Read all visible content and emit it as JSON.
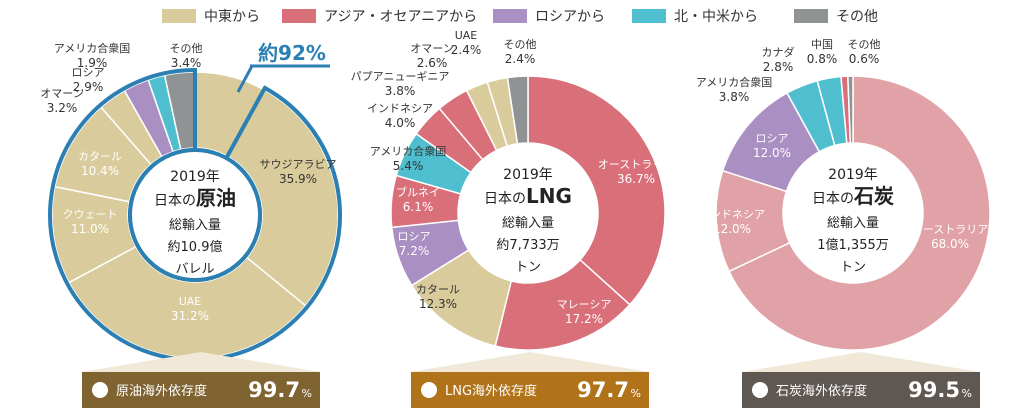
{
  "legend": [
    {
      "label": "中東から",
      "color": "#d9cb9b"
    },
    {
      "label": "アジア・オセアニアから",
      "color": "#d96f79"
    },
    {
      "label": "ロシアから",
      "color": "#a98fc2"
    },
    {
      "label": "北・中米から",
      "color": "#4fbfcf"
    },
    {
      "label": "その他",
      "color": "#8f9394"
    }
  ],
  "chart_data": [
    {
      "type": "pie",
      "title": "原油",
      "center": {
        "year": "2019年",
        "line1_prefix": "日本の",
        "line1_big": "原油",
        "line2": "総輸入量",
        "line3": "約10.9億",
        "line4": "バレル"
      },
      "highlight": {
        "label": "約92%",
        "value": 92,
        "color": "#2b7fb3"
      },
      "slices": [
        {
          "label": "サウジアラビア",
          "value": 35.9,
          "display": "35.9%",
          "group": "middle_east"
        },
        {
          "label": "UAE",
          "value": 31.2,
          "display": "31.2%",
          "group": "middle_east"
        },
        {
          "label": "クウェート",
          "value": 11.0,
          "display": "11.0%",
          "group": "middle_east"
        },
        {
          "label": "カタール",
          "value": 10.4,
          "display": "10.4%",
          "group": "middle_east"
        },
        {
          "label": "オマーン",
          "value": 3.2,
          "display": "3.2%",
          "group": "middle_east"
        },
        {
          "label": "ロシア",
          "value": 2.9,
          "display": "2.9%",
          "group": "russia"
        },
        {
          "label": "アメリカ合衆国",
          "value": 1.9,
          "display": "1.9%",
          "group": "north_america"
        },
        {
          "label": "その他",
          "value": 3.4,
          "display": "3.4%",
          "group": "other"
        }
      ],
      "dependence": {
        "label": "原油海外依存度",
        "value": "99.7",
        "unit": "%",
        "color": "#7f6431"
      }
    },
    {
      "type": "pie",
      "title": "LNG",
      "center": {
        "year": "2019年",
        "line1_prefix": "日本の",
        "line1_big": "LNG",
        "line2": "総輸入量",
        "line3": "約7,733万",
        "line4": "トン"
      },
      "slices": [
        {
          "label": "オーストラリア",
          "value": 36.7,
          "display": "36.7%",
          "group": "asia"
        },
        {
          "label": "マレーシア",
          "value": 17.2,
          "display": "17.2%",
          "group": "asia"
        },
        {
          "label": "カタール",
          "value": 12.3,
          "display": "12.3%",
          "group": "middle_east"
        },
        {
          "label": "ロシア",
          "value": 7.2,
          "display": "7.2%",
          "group": "russia"
        },
        {
          "label": "ブルネイ",
          "value": 6.1,
          "display": "6.1%",
          "group": "asia"
        },
        {
          "label": "アメリカ合衆国",
          "value": 5.4,
          "display": "5.4%",
          "group": "north_america"
        },
        {
          "label": "インドネシア",
          "value": 4.0,
          "display": "4.0%",
          "group": "asia"
        },
        {
          "label": "パプアニューギニア",
          "value": 3.8,
          "display": "3.8%",
          "group": "asia"
        },
        {
          "label": "オマーン",
          "value": 2.6,
          "display": "2.6%",
          "group": "middle_east"
        },
        {
          "label": "UAE",
          "value": 2.4,
          "display": "2.4%",
          "group": "middle_east"
        },
        {
          "label": "その他",
          "value": 2.4,
          "display": "2.4%",
          "group": "other"
        }
      ],
      "dependence": {
        "label": "LNG海外依存度",
        "value": "97.7",
        "unit": "%",
        "color": "#b17319"
      }
    },
    {
      "type": "pie",
      "title": "石炭",
      "center": {
        "year": "2019年",
        "line1_prefix": "日本の",
        "line1_big": "石炭",
        "line2": "総輸入量",
        "line3": "1億1,355万",
        "line4": "トン"
      },
      "slices": [
        {
          "label": "オーストラリア",
          "value": 68.0,
          "display": "68.0%",
          "group": "asia_light"
        },
        {
          "label": "インドネシア",
          "value": 12.0,
          "display": "12.0%",
          "group": "asia_light"
        },
        {
          "label": "ロシア",
          "value": 12.0,
          "display": "12.0%",
          "group": "russia"
        },
        {
          "label": "アメリカ合衆国",
          "value": 3.8,
          "display": "3.8%",
          "group": "north_america"
        },
        {
          "label": "カナダ",
          "value": 2.8,
          "display": "2.8%",
          "group": "north_america"
        },
        {
          "label": "中国",
          "value": 0.8,
          "display": "0.8%",
          "group": "asia"
        },
        {
          "label": "その他",
          "value": 0.6,
          "display": "0.6%",
          "group": "other"
        }
      ],
      "dependence": {
        "label": "石炭海外依存度",
        "value": "99.5",
        "unit": "%",
        "color": "#5f5752"
      }
    }
  ],
  "group_colors": {
    "middle_east": "#d9cb9b",
    "asia": "#d96f79",
    "asia_light": "#e0a2a6",
    "russia": "#a98fc2",
    "north_america": "#4fbfcf",
    "other": "#8f9394"
  }
}
